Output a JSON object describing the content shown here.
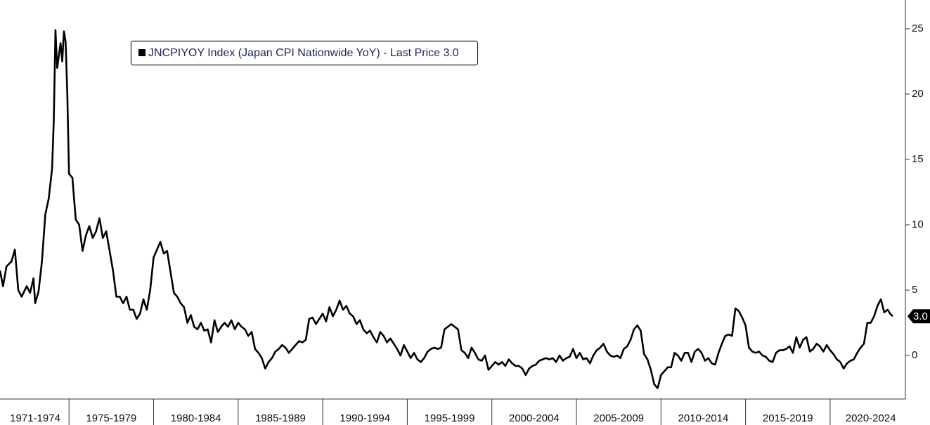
{
  "chart_data": {
    "type": "line",
    "legend_box": true,
    "xlim": [
      1970.92,
      2024.45
    ],
    "ylim": [
      -3.33,
      27.2
    ],
    "yticks": [
      0,
      5,
      10,
      15,
      20,
      25
    ],
    "xticks": [
      1975,
      1980,
      1985,
      1990,
      1995,
      2000,
      2005,
      2010,
      2015,
      2020
    ],
    "x_labels": [
      {
        "value": 1973,
        "label": "1971-1974"
      },
      {
        "value": 1977.5,
        "label": "1975-1979"
      },
      {
        "value": 1982.5,
        "label": "1980-1984"
      },
      {
        "value": 1987.5,
        "label": "1985-1989"
      },
      {
        "value": 1992.5,
        "label": "1990-1994"
      },
      {
        "value": 1997.5,
        "label": "1995-1999"
      },
      {
        "value": 2002.5,
        "label": "2000-2004"
      },
      {
        "value": 2007.5,
        "label": "2005-2009"
      },
      {
        "value": 2012.5,
        "label": "2010-2014"
      },
      {
        "value": 2017.5,
        "label": "2015-2019"
      },
      {
        "value": 2022.4,
        "label": "2020-2024"
      }
    ],
    "last_price": {
      "value": 3,
      "label": "3.0"
    },
    "x": [
      1970.92,
      1971.1,
      1971.3,
      1971.6,
      1971.8,
      1972,
      1972.2,
      1972.5,
      1972.7,
      1972.9,
      1973,
      1973.2,
      1973.4,
      1973.6,
      1973.8,
      1974,
      1974.1,
      1974.2,
      1974.3,
      1974.5,
      1974.6,
      1974.7,
      1974.8,
      1974.9,
      1975,
      1975.2,
      1975.4,
      1975.6,
      1975.8,
      1976,
      1976.2,
      1976.4,
      1976.6,
      1976.8,
      1977,
      1977.2,
      1977.4,
      1977.6,
      1977.8,
      1978,
      1978.2,
      1978.4,
      1978.6,
      1978.8,
      1979,
      1979.2,
      1979.4,
      1979.6,
      1979.8,
      1980,
      1980.2,
      1980.4,
      1980.6,
      1980.8,
      1981,
      1981.2,
      1981.4,
      1981.6,
      1981.8,
      1982,
      1982.2,
      1982.4,
      1982.6,
      1982.8,
      1983,
      1983.2,
      1983.4,
      1983.6,
      1983.8,
      1984,
      1984.2,
      1984.4,
      1984.6,
      1984.8,
      1985,
      1985.2,
      1985.4,
      1985.6,
      1985.8,
      1986,
      1986.2,
      1986.4,
      1986.6,
      1986.8,
      1987,
      1987.2,
      1987.4,
      1987.6,
      1987.8,
      1988,
      1988.2,
      1988.4,
      1988.6,
      1988.8,
      1989,
      1989.2,
      1989.4,
      1989.6,
      1989.8,
      1990,
      1990.2,
      1990.4,
      1990.6,
      1990.8,
      1991,
      1991.2,
      1991.4,
      1991.6,
      1991.8,
      1992,
      1992.2,
      1992.4,
      1992.6,
      1992.8,
      1993,
      1993.2,
      1993.4,
      1993.6,
      1993.8,
      1994,
      1994.2,
      1994.4,
      1994.6,
      1994.8,
      1995,
      1995.2,
      1995.4,
      1995.6,
      1995.8,
      1996,
      1996.2,
      1996.4,
      1996.6,
      1996.8,
      1997,
      1997.2,
      1997.4,
      1997.6,
      1997.8,
      1998,
      1998.2,
      1998.4,
      1998.6,
      1998.8,
      1999,
      1999.2,
      1999.4,
      1999.6,
      1999.8,
      2000,
      2000.2,
      2000.4,
      2000.6,
      2000.8,
      2001,
      2001.2,
      2001.4,
      2001.6,
      2001.8,
      2002,
      2002.2,
      2002.4,
      2002.6,
      2002.8,
      2003,
      2003.2,
      2003.4,
      2003.6,
      2003.8,
      2004,
      2004.2,
      2004.4,
      2004.6,
      2004.8,
      2005,
      2005.2,
      2005.4,
      2005.6,
      2005.8,
      2006,
      2006.2,
      2006.4,
      2006.6,
      2006.8,
      2007,
      2007.2,
      2007.4,
      2007.6,
      2007.8,
      2008,
      2008.2,
      2008.4,
      2008.6,
      2008.8,
      2009,
      2009.2,
      2009.4,
      2009.6,
      2009.8,
      2010,
      2010.2,
      2010.4,
      2010.6,
      2010.8,
      2011,
      2011.2,
      2011.4,
      2011.6,
      2011.8,
      2012,
      2012.2,
      2012.4,
      2012.6,
      2012.8,
      2013,
      2013.2,
      2013.4,
      2013.6,
      2013.8,
      2014,
      2014.2,
      2014.4,
      2014.6,
      2014.8,
      2015,
      2015.2,
      2015.4,
      2015.6,
      2015.8,
      2016,
      2016.2,
      2016.4,
      2016.6,
      2016.8,
      2017,
      2017.2,
      2017.4,
      2017.6,
      2017.8,
      2018,
      2018.2,
      2018.4,
      2018.6,
      2018.8,
      2019,
      2019.2,
      2019.4,
      2019.6,
      2019.8,
      2020,
      2020.2,
      2020.4,
      2020.6,
      2020.8,
      2021,
      2021.2,
      2021.4,
      2021.6,
      2021.8,
      2022,
      2022.2,
      2022.4,
      2022.6,
      2022.8,
      2023,
      2023.2,
      2023.4,
      2023.55,
      2023.7
    ],
    "series": [
      {
        "name": "JNCPIYOY Index (Japan CPI Nationwide YoY) - Last Price 3.0",
        "color": "#000000",
        "values": [
          6.5,
          5.3,
          6.8,
          7.2,
          8.1,
          5.0,
          4.5,
          5.3,
          4.8,
          5.9,
          4.0,
          4.9,
          7.2,
          10.8,
          12.0,
          14.3,
          18.0,
          24.9,
          22.0,
          23.9,
          22.5,
          24.8,
          24.0,
          20.0,
          13.9,
          13.6,
          10.4,
          10.0,
          8.0,
          9.2,
          9.9,
          9.0,
          9.5,
          10.5,
          9.0,
          9.5,
          8.0,
          6.5,
          4.5,
          4.5,
          4.0,
          4.5,
          3.5,
          3.5,
          2.8,
          3.2,
          4.3,
          3.5,
          5.0,
          7.5,
          8.1,
          8.7,
          7.8,
          8.0,
          6.4,
          4.8,
          4.5,
          4.0,
          3.7,
          2.5,
          3.1,
          2.2,
          2.0,
          2.5,
          1.9,
          2.0,
          1.0,
          2.7,
          1.8,
          2.2,
          2.5,
          2.2,
          2.7,
          2.0,
          2.5,
          2.2,
          2.0,
          1.5,
          1.8,
          0.5,
          0.2,
          -0.2,
          -1.0,
          -0.5,
          -0.2,
          0.3,
          0.5,
          0.8,
          0.6,
          0.2,
          0.5,
          0.8,
          1.1,
          1.0,
          1.2,
          2.8,
          2.9,
          2.4,
          2.8,
          3.2,
          2.6,
          3.7,
          3.0,
          3.5,
          4.2,
          3.5,
          3.8,
          3.2,
          3.0,
          2.4,
          2.7,
          2.0,
          1.7,
          1.9,
          1.4,
          1.0,
          1.8,
          1.5,
          1.0,
          1.3,
          0.9,
          0.5,
          0.0,
          0.8,
          0.3,
          -0.2,
          0.2,
          -0.3,
          -0.5,
          -0.2,
          0.3,
          0.5,
          0.6,
          0.5,
          0.6,
          2.0,
          2.2,
          2.4,
          2.2,
          2.0,
          0.4,
          0.2,
          -0.2,
          0.6,
          0.2,
          -0.3,
          -0.4,
          0.0,
          -1.1,
          -0.8,
          -0.5,
          -0.7,
          -0.5,
          -0.8,
          -0.3,
          -0.6,
          -0.8,
          -0.8,
          -1.0,
          -1.5,
          -1.0,
          -0.8,
          -0.7,
          -0.4,
          -0.3,
          -0.2,
          -0.3,
          -0.2,
          -0.5,
          0.0,
          -0.4,
          -0.2,
          -0.1,
          0.5,
          -0.2,
          0.2,
          -0.3,
          -0.2,
          -0.6,
          0.0,
          0.4,
          0.6,
          0.9,
          0.3,
          0.0,
          -0.1,
          0.0,
          -0.2,
          0.5,
          0.7,
          1.2,
          2.0,
          2.3,
          1.9,
          0.1,
          -0.3,
          -1.1,
          -2.2,
          -2.5,
          -1.5,
          -1.2,
          -0.9,
          -0.9,
          0.2,
          0.0,
          -0.4,
          0.2,
          0.2,
          -0.5,
          0.3,
          0.5,
          0.2,
          -0.4,
          -0.2,
          -0.6,
          -0.7,
          0.2,
          0.9,
          1.5,
          1.6,
          1.5,
          3.6,
          3.4,
          2.9,
          2.3,
          0.6,
          0.3,
          0.2,
          0.3,
          0.0,
          -0.1,
          -0.4,
          -0.5,
          0.2,
          0.4,
          0.4,
          0.5,
          0.7,
          0.2,
          1.4,
          0.6,
          1.2,
          1.4,
          0.3,
          0.5,
          0.9,
          0.7,
          0.3,
          0.8,
          0.4,
          0.1,
          -0.3,
          -0.5,
          -1.0,
          -0.6,
          -0.4,
          -0.3,
          0.2,
          0.6,
          0.9,
          2.5,
          2.5,
          3.0,
          3.8,
          4.3,
          3.3,
          3.5,
          3.2,
          3.0
        ]
      }
    ]
  }
}
